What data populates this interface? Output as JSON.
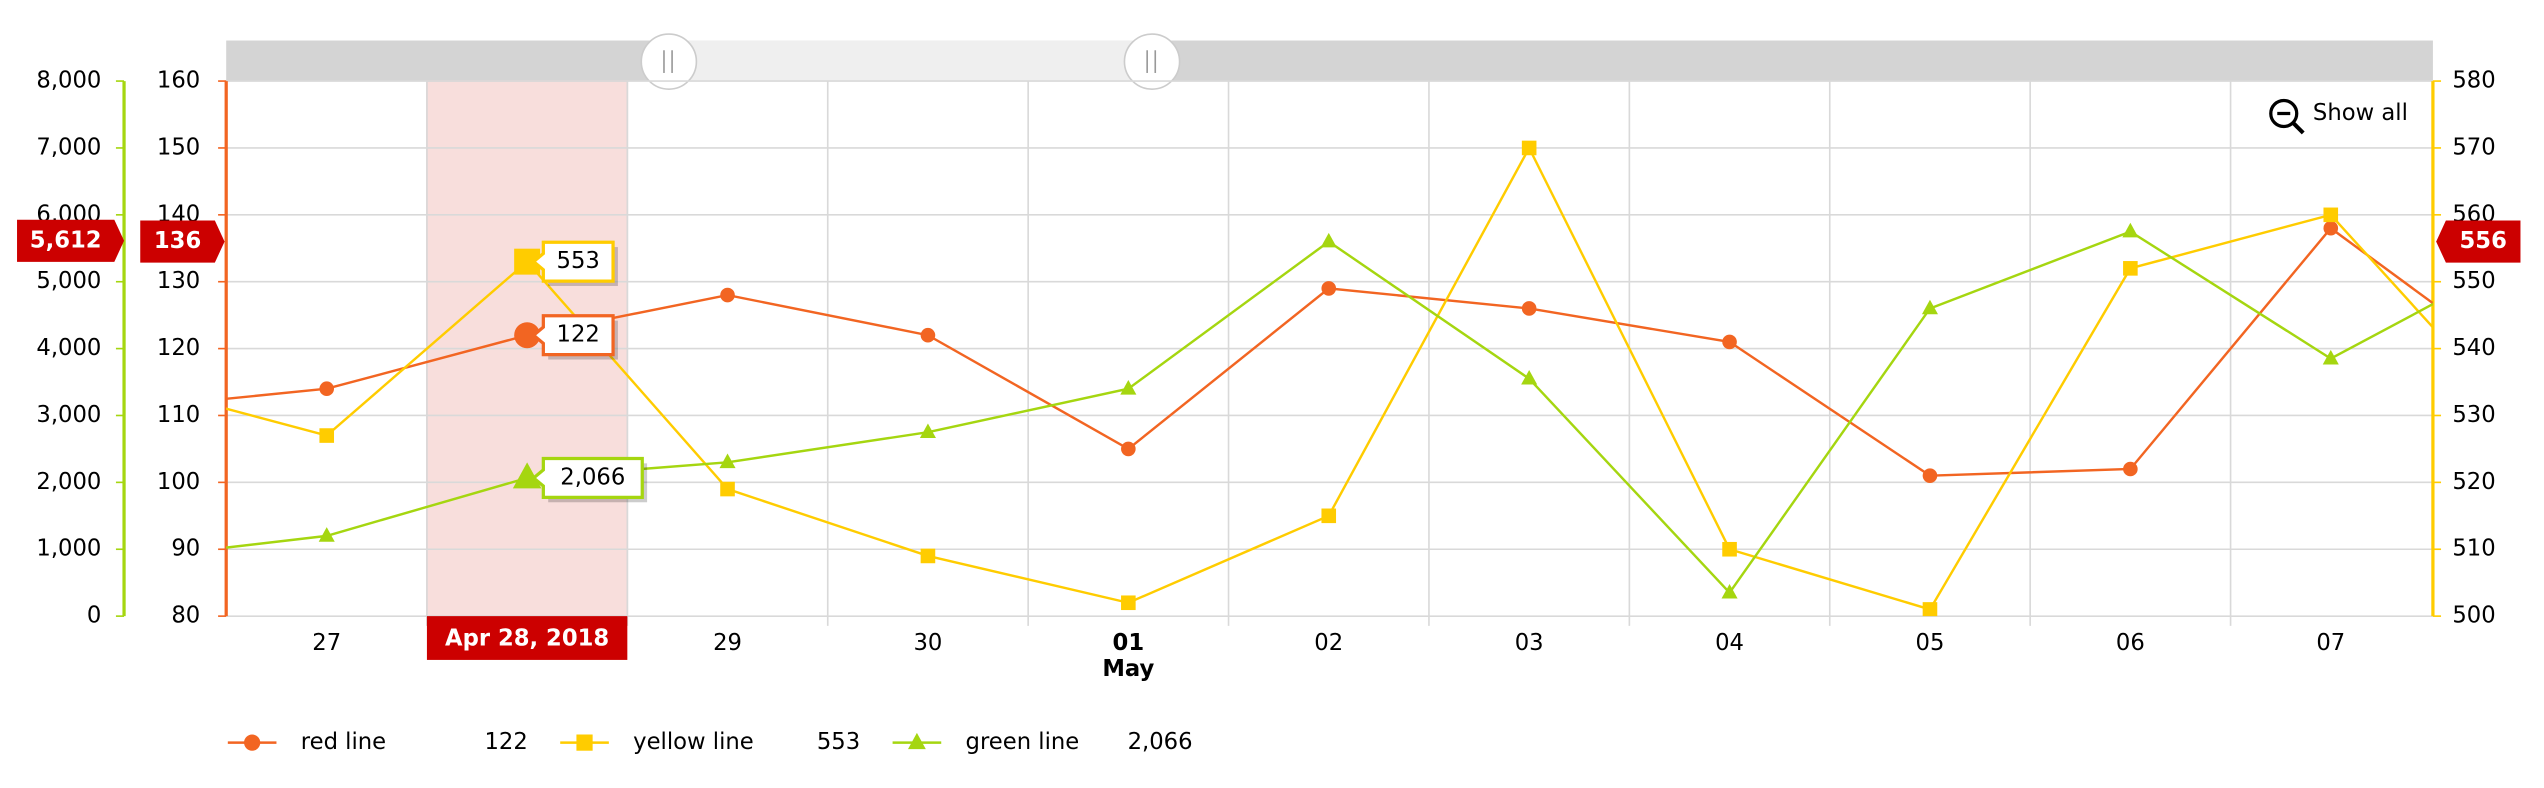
{
  "chart_data": {
    "type": "line",
    "categories": [
      null,
      "27",
      "Apr 28, 2018",
      "29",
      "30",
      "01",
      "02",
      "03",
      "04",
      "05",
      "06",
      "07",
      null
    ],
    "category_sublabels": {
      "5": "May"
    },
    "highlight_index": 2,
    "ylim": [
      80,
      160
    ],
    "yticks": [
      80,
      90,
      100,
      110,
      120,
      130,
      140,
      150,
      160
    ],
    "y2lim": [
      500,
      580
    ],
    "y2ticks": [
      500,
      510,
      520,
      530,
      540,
      550,
      560,
      570,
      580
    ],
    "y3lim": [
      0,
      8000
    ],
    "y3ticks": [
      0,
      {
        "value": 1000,
        "label": "1,000"
      },
      {
        "value": 2000,
        "label": "2,000"
      },
      {
        "value": 3000,
        "label": "3,000"
      },
      {
        "value": 4000,
        "label": "4,000"
      },
      {
        "value": 5000,
        "label": "5,000"
      },
      {
        "value": 6000,
        "label": "6,000"
      },
      {
        "value": 7000,
        "label": "7,000"
      },
      {
        "value": 8000,
        "label": "8,000"
      }
    ],
    "grid": true,
    "series": [
      {
        "name": "red line",
        "color": "#f26522",
        "marker": "circle",
        "axis": "y",
        "values": [
          111,
          114,
          122,
          128,
          122,
          105,
          129,
          126,
          121,
          101,
          102,
          138,
          116
        ],
        "value_labels": [
          null,
          null,
          "122",
          null,
          null,
          null,
          null,
          null,
          null,
          null,
          null,
          null,
          null
        ]
      },
      {
        "name": "yellow line",
        "color": "#ffcc00",
        "marker": "square",
        "axis": "y2",
        "values": [
          535,
          527,
          553,
          519,
          509,
          502,
          515,
          570,
          510,
          501,
          552,
          560,
          527
        ],
        "value_labels": [
          null,
          null,
          "553",
          null,
          null,
          null,
          null,
          null,
          null,
          null,
          null,
          null,
          null
        ]
      },
      {
        "name": "green line",
        "color": "#a5d610",
        "marker": "triangle",
        "axis": "y3",
        "values": [
          850,
          1200,
          2066,
          2300,
          2750,
          3400,
          5600,
          3550,
          350,
          4600,
          5750,
          3850,
          5450
        ],
        "value_labels": [
          null,
          null,
          "2,066",
          null,
          null,
          null,
          null,
          null,
          null,
          null,
          null,
          null,
          null
        ]
      }
    ],
    "cursor": {
      "y": 136,
      "y2": 556,
      "y3": 5612,
      "y3_label": "5,612"
    },
    "zoom_button": "Show all"
  }
}
